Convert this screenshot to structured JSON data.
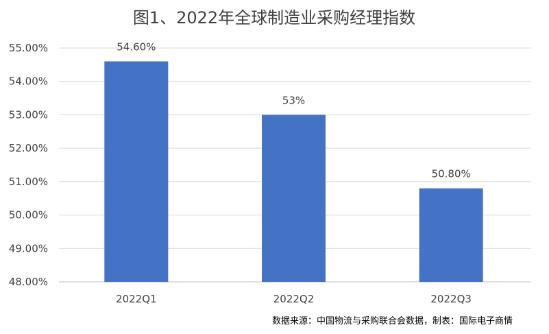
{
  "chart_data": {
    "type": "bar",
    "title": "图1、2022年全球制造业采购经理指数",
    "categories": [
      "2022Q1",
      "2022Q2",
      "2022Q3"
    ],
    "values": [
      54.6,
      53.0,
      50.8
    ],
    "data_labels": [
      "54.60%",
      "53%",
      "50.80%"
    ],
    "ylim": [
      48,
      55
    ],
    "yticks": [
      48,
      49,
      50,
      51,
      52,
      53,
      54,
      55
    ],
    "ytick_labels": [
      "48.00%",
      "49.00%",
      "50.00%",
      "51.00%",
      "52.00%",
      "53.00%",
      "54.00%",
      "55.00%"
    ],
    "grid": true,
    "bar_color": "#4472C4",
    "grid_color": "#D9D9D9",
    "source": "数据来源：中国物流与采购联合会数据，制表：国际电子商情"
  }
}
